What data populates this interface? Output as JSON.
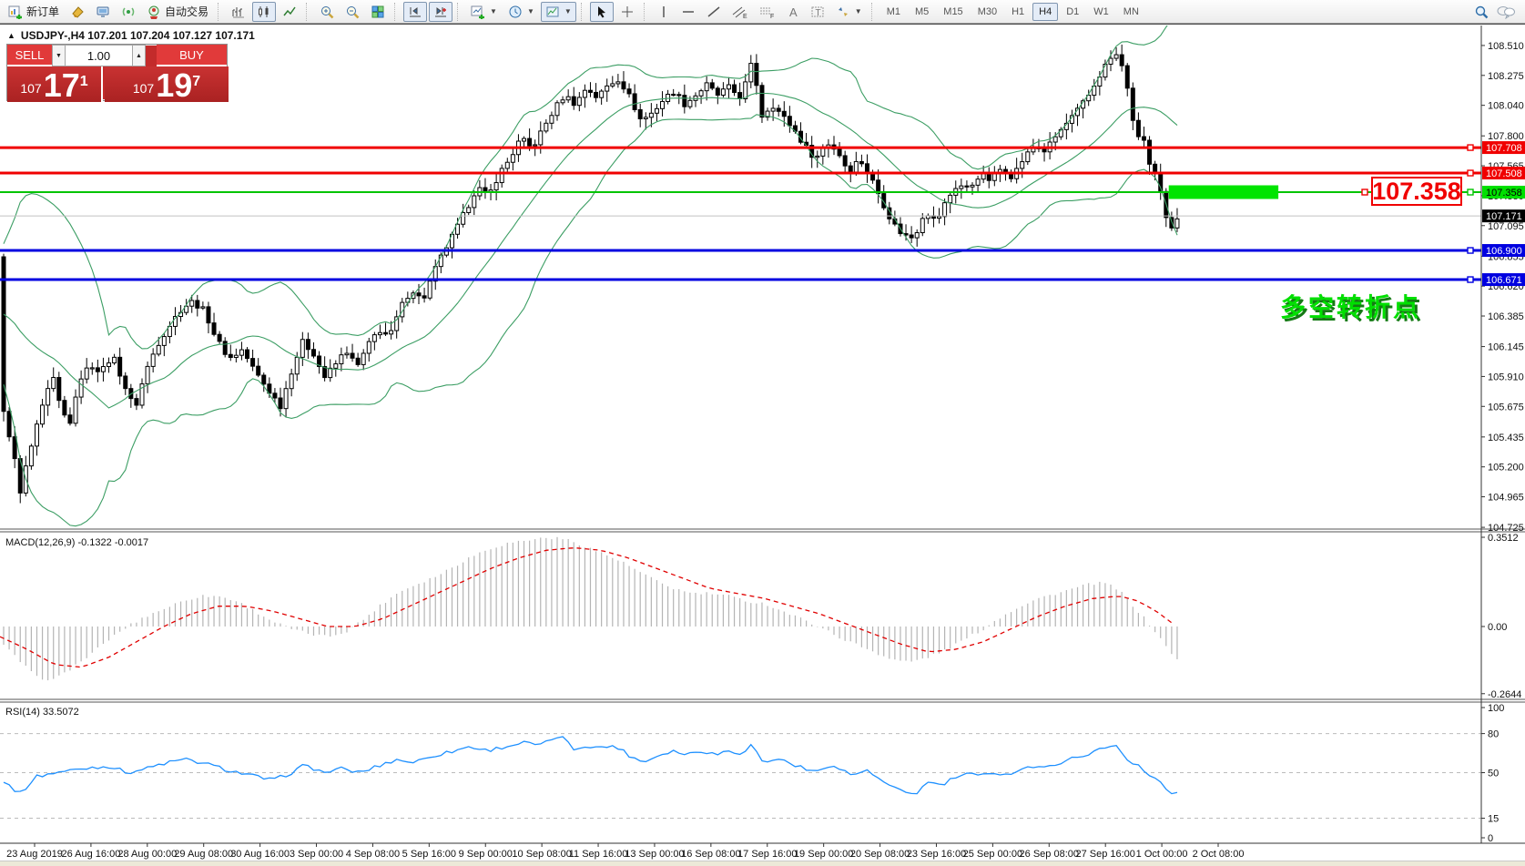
{
  "toolbar": {
    "new_order_label": "新订单",
    "autotrading_label": "自动交易",
    "timeframes": [
      "M1",
      "M5",
      "M15",
      "M30",
      "H1",
      "H4",
      "D1",
      "W1",
      "MN"
    ],
    "active_timeframe": "H4"
  },
  "symbol_header": {
    "text": "USDJPY-,H4  107.201 107.204 107.127 107.171"
  },
  "trade_panel": {
    "sell_label": "SELL",
    "buy_label": "BUY",
    "volume": "1.00",
    "bid_small": "107",
    "bid_big": "17",
    "bid_sup": "1",
    "ask_small": "107",
    "ask_big": "19",
    "ask_sup": "7"
  },
  "price_callout": {
    "text": "107.358"
  },
  "annotation": {
    "text": "多空转折点",
    "color": "#00df00"
  },
  "chart_data": {
    "type": "candlestick",
    "symbol": "USDJPY-",
    "timeframe": "H4",
    "ohlc_display": {
      "open": 107.201,
      "high": 107.204,
      "low": 107.127,
      "close": 107.171
    },
    "bid": 107.171,
    "ask": 107.197,
    "y_axis": {
      "min": 104.725,
      "max": 108.667,
      "ticks": [
        108.51,
        108.275,
        108.04,
        107.8,
        107.565,
        107.33,
        107.095,
        106.855,
        106.62,
        106.385,
        106.145,
        105.91,
        105.675,
        105.435,
        105.2,
        104.965,
        104.725
      ]
    },
    "hlines": [
      {
        "price": 107.708,
        "color": "#f00000",
        "width": 3,
        "badge_bg": "#f00000",
        "badge_fg": "#ffffff",
        "label": "107.708"
      },
      {
        "price": 107.508,
        "color": "#f00000",
        "width": 3,
        "badge_bg": "#f00000",
        "badge_fg": "#ffffff",
        "label": "107.508"
      },
      {
        "price": 107.358,
        "color": "#00c400",
        "width": 2,
        "badge_bg": "#00e000",
        "badge_fg": "#000000",
        "label": "107.358"
      },
      {
        "price": 106.9,
        "color": "#0000e0",
        "width": 3,
        "badge_bg": "#0000e0",
        "badge_fg": "#ffffff",
        "label": "106.900"
      },
      {
        "price": 106.671,
        "color": "#0000e0",
        "width": 3,
        "badge_bg": "#0000e0",
        "badge_fg": "#ffffff",
        "label": "106.671"
      }
    ],
    "bid_line": {
      "price": 107.171,
      "color": "#c0c0c0",
      "badge_bg": "#000000",
      "badge_fg": "#ffffff",
      "label": "107.171"
    },
    "highlight_box": {
      "price": 107.358,
      "x0": 0.789,
      "x1": 0.863,
      "color": "#00e400"
    },
    "bollinger": {
      "period": 20,
      "deviation": 2,
      "color": "#3c9e64"
    },
    "candles": {
      "bars": 213,
      "first_open": 106.85,
      "close_anchors": [
        [
          0,
          106.82
        ],
        [
          4,
          105.62
        ],
        [
          14,
          105.35
        ],
        [
          22,
          104.98
        ],
        [
          30,
          105.25
        ],
        [
          40,
          105.5
        ],
        [
          50,
          105.75
        ],
        [
          58,
          105.9
        ],
        [
          68,
          105.62
        ],
        [
          78,
          105.55
        ],
        [
          88,
          105.9
        ],
        [
          100,
          106.0
        ],
        [
          112,
          105.95
        ],
        [
          124,
          106.08
        ],
        [
          136,
          105.85
        ],
        [
          148,
          105.65
        ],
        [
          160,
          105.95
        ],
        [
          172,
          106.15
        ],
        [
          185,
          106.3
        ],
        [
          200,
          106.45
        ],
        [
          212,
          106.5
        ],
        [
          225,
          106.42
        ],
        [
          238,
          106.2
        ],
        [
          252,
          106.05
        ],
        [
          266,
          106.12
        ],
        [
          280,
          105.95
        ],
        [
          295,
          105.8
        ],
        [
          308,
          105.68
        ],
        [
          320,
          105.95
        ],
        [
          332,
          106.18
        ],
        [
          344,
          106.1
        ],
        [
          356,
          105.9
        ],
        [
          368,
          106.0
        ],
        [
          380,
          106.12
        ],
        [
          392,
          105.98
        ],
        [
          404,
          106.15
        ],
        [
          416,
          106.28
        ],
        [
          428,
          106.22
        ],
        [
          440,
          106.45
        ],
        [
          452,
          106.6
        ],
        [
          464,
          106.5
        ],
        [
          476,
          106.72
        ],
        [
          488,
          106.9
        ],
        [
          500,
          107.05
        ],
        [
          512,
          107.22
        ],
        [
          524,
          107.4
        ],
        [
          536,
          107.32
        ],
        [
          548,
          107.5
        ],
        [
          560,
          107.62
        ],
        [
          572,
          107.78
        ],
        [
          584,
          107.7
        ],
        [
          596,
          107.85
        ],
        [
          608,
          108.0
        ],
        [
          620,
          108.12
        ],
        [
          632,
          108.05
        ],
        [
          644,
          108.18
        ],
        [
          656,
          108.1
        ],
        [
          668,
          108.2
        ],
        [
          680,
          108.25
        ],
        [
          692,
          108.1
        ],
        [
          704,
          107.92
        ],
        [
          716,
          107.98
        ],
        [
          728,
          108.08
        ],
        [
          740,
          108.15
        ],
        [
          752,
          108.05
        ],
        [
          764,
          108.12
        ],
        [
          776,
          108.2
        ],
        [
          788,
          108.12
        ],
        [
          800,
          108.18
        ],
        [
          814,
          108.1
        ],
        [
          827,
          108.4
        ],
        [
          836,
          107.95
        ],
        [
          848,
          108.05
        ],
        [
          860,
          107.95
        ],
        [
          872,
          107.85
        ],
        [
          884,
          107.72
        ],
        [
          896,
          107.62
        ],
        [
          908,
          107.75
        ],
        [
          920,
          107.68
        ],
        [
          932,
          107.52
        ],
        [
          944,
          107.62
        ],
        [
          956,
          107.48
        ],
        [
          968,
          107.3
        ],
        [
          980,
          107.12
        ],
        [
          992,
          107.02
        ],
        [
          1004,
          107.0
        ],
        [
          1016,
          107.22
        ],
        [
          1028,
          107.12
        ],
        [
          1040,
          107.3
        ],
        [
          1052,
          107.42
        ],
        [
          1064,
          107.38
        ],
        [
          1076,
          107.5
        ],
        [
          1088,
          107.45
        ],
        [
          1100,
          107.55
        ],
        [
          1112,
          107.48
        ],
        [
          1124,
          107.62
        ],
        [
          1136,
          107.72
        ],
        [
          1148,
          107.68
        ],
        [
          1160,
          107.8
        ],
        [
          1172,
          107.9
        ],
        [
          1184,
          108.0
        ],
        [
          1196,
          108.12
        ],
        [
          1208,
          108.28
        ],
        [
          1218,
          108.4
        ],
        [
          1228,
          108.44
        ],
        [
          1238,
          108.2
        ],
        [
          1246,
          107.82
        ],
        [
          1256,
          107.78
        ],
        [
          1264,
          107.52
        ],
        [
          1272,
          107.45
        ],
        [
          1280,
          107.15
        ],
        [
          1288,
          107.08
        ],
        [
          1293,
          107.17
        ]
      ]
    },
    "macd": {
      "label": "MACD(12,26,9) -0.1322 -0.0017",
      "value": -0.1322,
      "signal_value": -0.0017,
      "axis_ticks": [
        0.3512,
        0.0,
        -0.2644
      ],
      "hist_color": "#b4b4b4",
      "signal_color": "#e00000",
      "main_anchors": [
        [
          0,
          -0.06
        ],
        [
          20,
          -0.13
        ],
        [
          40,
          -0.2
        ],
        [
          60,
          -0.21
        ],
        [
          80,
          -0.16
        ],
        [
          100,
          -0.11
        ],
        [
          120,
          -0.05
        ],
        [
          140,
          0.0
        ],
        [
          160,
          0.04
        ],
        [
          180,
          0.07
        ],
        [
          200,
          0.1
        ],
        [
          220,
          0.12
        ],
        [
          240,
          0.12
        ],
        [
          260,
          0.1
        ],
        [
          280,
          0.06
        ],
        [
          300,
          0.02
        ],
        [
          320,
          -0.01
        ],
        [
          340,
          -0.03
        ],
        [
          360,
          -0.04
        ],
        [
          380,
          -0.02
        ],
        [
          400,
          0.03
        ],
        [
          420,
          0.09
        ],
        [
          440,
          0.14
        ],
        [
          460,
          0.17
        ],
        [
          480,
          0.2
        ],
        [
          500,
          0.24
        ],
        [
          520,
          0.28
        ],
        [
          540,
          0.31
        ],
        [
          560,
          0.33
        ],
        [
          580,
          0.34
        ],
        [
          600,
          0.35
        ],
        [
          620,
          0.345
        ],
        [
          640,
          0.32
        ],
        [
          660,
          0.29
        ],
        [
          680,
          0.26
        ],
        [
          700,
          0.22
        ],
        [
          720,
          0.18
        ],
        [
          740,
          0.15
        ],
        [
          760,
          0.13
        ],
        [
          780,
          0.13
        ],
        [
          800,
          0.12
        ],
        [
          820,
          0.1
        ],
        [
          840,
          0.09
        ],
        [
          860,
          0.06
        ],
        [
          880,
          0.03
        ],
        [
          900,
          0.0
        ],
        [
          920,
          -0.04
        ],
        [
          940,
          -0.07
        ],
        [
          960,
          -0.1
        ],
        [
          980,
          -0.13
        ],
        [
          1000,
          -0.14
        ],
        [
          1020,
          -0.12
        ],
        [
          1040,
          -0.09
        ],
        [
          1060,
          -0.05
        ],
        [
          1080,
          -0.01
        ],
        [
          1100,
          0.04
        ],
        [
          1120,
          0.08
        ],
        [
          1140,
          0.11
        ],
        [
          1160,
          0.13
        ],
        [
          1180,
          0.15
        ],
        [
          1200,
          0.17
        ],
        [
          1215,
          0.17
        ],
        [
          1230,
          0.14
        ],
        [
          1245,
          0.08
        ],
        [
          1260,
          0.02
        ],
        [
          1275,
          -0.05
        ],
        [
          1288,
          -0.11
        ],
        [
          1293,
          -0.1322
        ]
      ],
      "signal_anchors": [
        [
          0,
          -0.04
        ],
        [
          30,
          -0.09
        ],
        [
          60,
          -0.15
        ],
        [
          90,
          -0.16
        ],
        [
          120,
          -0.12
        ],
        [
          150,
          -0.06
        ],
        [
          180,
          0.0
        ],
        [
          210,
          0.05
        ],
        [
          240,
          0.08
        ],
        [
          270,
          0.08
        ],
        [
          300,
          0.06
        ],
        [
          330,
          0.03
        ],
        [
          360,
          0.0
        ],
        [
          390,
          0.0
        ],
        [
          420,
          0.03
        ],
        [
          450,
          0.08
        ],
        [
          480,
          0.13
        ],
        [
          510,
          0.18
        ],
        [
          540,
          0.23
        ],
        [
          570,
          0.27
        ],
        [
          600,
          0.3
        ],
        [
          630,
          0.31
        ],
        [
          660,
          0.3
        ],
        [
          690,
          0.27
        ],
        [
          720,
          0.23
        ],
        [
          750,
          0.19
        ],
        [
          780,
          0.15
        ],
        [
          810,
          0.13
        ],
        [
          840,
          0.11
        ],
        [
          870,
          0.08
        ],
        [
          900,
          0.05
        ],
        [
          930,
          0.01
        ],
        [
          960,
          -0.03
        ],
        [
          990,
          -0.07
        ],
        [
          1020,
          -0.1
        ],
        [
          1050,
          -0.09
        ],
        [
          1080,
          -0.06
        ],
        [
          1110,
          -0.01
        ],
        [
          1140,
          0.04
        ],
        [
          1170,
          0.08
        ],
        [
          1200,
          0.11
        ],
        [
          1230,
          0.12
        ],
        [
          1250,
          0.1
        ],
        [
          1270,
          0.06
        ],
        [
          1285,
          0.02
        ],
        [
          1293,
          -0.0017
        ]
      ]
    },
    "rsi": {
      "label": "RSI(14) 33.5072",
      "value": 33.5072,
      "color": "#1e90ff",
      "axis_ticks": [
        100,
        80,
        50,
        15,
        0
      ],
      "levels": [
        80,
        50,
        15
      ],
      "anchors": [
        [
          0,
          45
        ],
        [
          22,
          34
        ],
        [
          40,
          47
        ],
        [
          60,
          50
        ],
        [
          80,
          52
        ],
        [
          100,
          54
        ],
        [
          120,
          55
        ],
        [
          140,
          50
        ],
        [
          160,
          53
        ],
        [
          185,
          58
        ],
        [
          205,
          60
        ],
        [
          225,
          57
        ],
        [
          250,
          52
        ],
        [
          275,
          48
        ],
        [
          300,
          44
        ],
        [
          320,
          50
        ],
        [
          335,
          56
        ],
        [
          355,
          50
        ],
        [
          375,
          53
        ],
        [
          395,
          50
        ],
        [
          415,
          55
        ],
        [
          435,
          60
        ],
        [
          455,
          58
        ],
        [
          475,
          63
        ],
        [
          495,
          66
        ],
        [
          515,
          70
        ],
        [
          535,
          67
        ],
        [
          555,
          70
        ],
        [
          575,
          73
        ],
        [
          595,
          71
        ],
        [
          615,
          79
        ],
        [
          630,
          68
        ],
        [
          645,
          71
        ],
        [
          660,
          69
        ],
        [
          675,
          71
        ],
        [
          692,
          63
        ],
        [
          706,
          58
        ],
        [
          722,
          63
        ],
        [
          738,
          67
        ],
        [
          754,
          64
        ],
        [
          770,
          67
        ],
        [
          786,
          64
        ],
        [
          800,
          67
        ],
        [
          814,
          65
        ],
        [
          827,
          72
        ],
        [
          838,
          57
        ],
        [
          852,
          61
        ],
        [
          866,
          58
        ],
        [
          880,
          54
        ],
        [
          894,
          50
        ],
        [
          908,
          56
        ],
        [
          922,
          53
        ],
        [
          936,
          48
        ],
        [
          950,
          52
        ],
        [
          964,
          46
        ],
        [
          978,
          39
        ],
        [
          992,
          35
        ],
        [
          1006,
          34
        ],
        [
          1020,
          43
        ],
        [
          1034,
          40
        ],
        [
          1048,
          46
        ],
        [
          1062,
          49
        ],
        [
          1076,
          47
        ],
        [
          1090,
          51
        ],
        [
          1104,
          48
        ],
        [
          1118,
          52
        ],
        [
          1132,
          55
        ],
        [
          1146,
          53
        ],
        [
          1160,
          57
        ],
        [
          1174,
          60
        ],
        [
          1188,
          63
        ],
        [
          1202,
          66
        ],
        [
          1216,
          70
        ],
        [
          1228,
          71
        ],
        [
          1240,
          58
        ],
        [
          1250,
          56
        ],
        [
          1262,
          47
        ],
        [
          1272,
          45
        ],
        [
          1282,
          36
        ],
        [
          1290,
          34
        ],
        [
          1293,
          33.5
        ]
      ]
    },
    "x_axis_labels": [
      "23 Aug 2019",
      "26 Aug 16:00",
      "28 Aug 00:00",
      "29 Aug 08:00",
      "30 Aug 16:00",
      "3 Sep 00:00",
      "4 Sep 08:00",
      "5 Sep 16:00",
      "9 Sep 00:00",
      "10 Sep 08:00",
      "11 Sep 16:00",
      "13 Sep 00:00",
      "16 Sep 08:00",
      "17 Sep 16:00",
      "19 Sep 00:00",
      "20 Sep 08:00",
      "23 Sep 16:00",
      "25 Sep 00:00",
      "26 Sep 08:00",
      "27 Sep 16:00",
      "1 Oct 00:00",
      "2 Oct 08:00"
    ]
  }
}
